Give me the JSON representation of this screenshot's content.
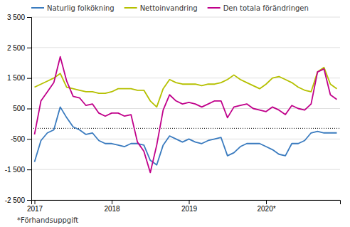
{
  "chart_data": {
    "type": "line",
    "footnote": "*Förhandsuppgift",
    "categories": [
      "2017",
      null,
      null,
      null,
      null,
      null,
      null,
      null,
      null,
      null,
      null,
      null,
      "2018",
      null,
      null,
      null,
      null,
      null,
      null,
      null,
      null,
      null,
      null,
      null,
      "2019",
      null,
      null,
      null,
      null,
      null,
      null,
      null,
      null,
      null,
      null,
      null,
      "2020*",
      null,
      null,
      null,
      null,
      null,
      null,
      null,
      null,
      null,
      null,
      null
    ],
    "series": [
      {
        "name": "Naturlig folkökning",
        "color": "#3a7bbf",
        "values": [
          -1250,
          -550,
          -300,
          -200,
          550,
          200,
          -100,
          -200,
          -350,
          -300,
          -550,
          -650,
          -650,
          -700,
          -750,
          -650,
          -650,
          -700,
          -1200,
          -1350,
          -700,
          -400,
          -500,
          -600,
          -500,
          -600,
          -650,
          -550,
          -500,
          -450,
          -1050,
          -950,
          -750,
          -650,
          -650,
          -650,
          -750,
          -850,
          -1000,
          -1050,
          -650,
          -650,
          -550,
          -300,
          -250,
          -300,
          -300,
          -300
        ]
      },
      {
        "name": "Nettoinvandring",
        "color": "#b5c000",
        "values": [
          1200,
          1300,
          1400,
          1500,
          1650,
          1200,
          1150,
          1100,
          1050,
          1050,
          1000,
          1000,
          1050,
          1150,
          1150,
          1150,
          1100,
          1100,
          750,
          550,
          1150,
          1450,
          1350,
          1300,
          1300,
          1300,
          1250,
          1300,
          1300,
          1350,
          1450,
          1600,
          1450,
          1350,
          1250,
          1150,
          1300,
          1500,
          1550,
          1450,
          1350,
          1200,
          1100,
          1050,
          1700,
          1850,
          1300,
          1150
        ]
      },
      {
        "name": "Den totala förändringen",
        "color": "#c0008a",
        "values": [
          -350,
          750,
          1050,
          1350,
          2200,
          1400,
          900,
          850,
          600,
          650,
          350,
          250,
          350,
          350,
          250,
          300,
          -600,
          -900,
          -1600,
          -700,
          450,
          950,
          750,
          650,
          700,
          650,
          550,
          650,
          750,
          750,
          200,
          550,
          600,
          650,
          500,
          450,
          400,
          550,
          450,
          300,
          600,
          500,
          450,
          650,
          1700,
          1800,
          950,
          800
        ]
      }
    ],
    "reference_line": -150,
    "ylim": [
      -2500,
      3500
    ],
    "yticks": [
      {
        "value": -2500,
        "label": "-2 500"
      },
      {
        "value": -1500,
        "label": "-1 500"
      },
      -500,
      500,
      {
        "value": 1500,
        "label": "1 500"
      },
      {
        "value": 2500,
        "label": "2 500"
      },
      {
        "value": 3500,
        "label": "3 500"
      }
    ],
    "grid": true,
    "legend": "top-left"
  }
}
